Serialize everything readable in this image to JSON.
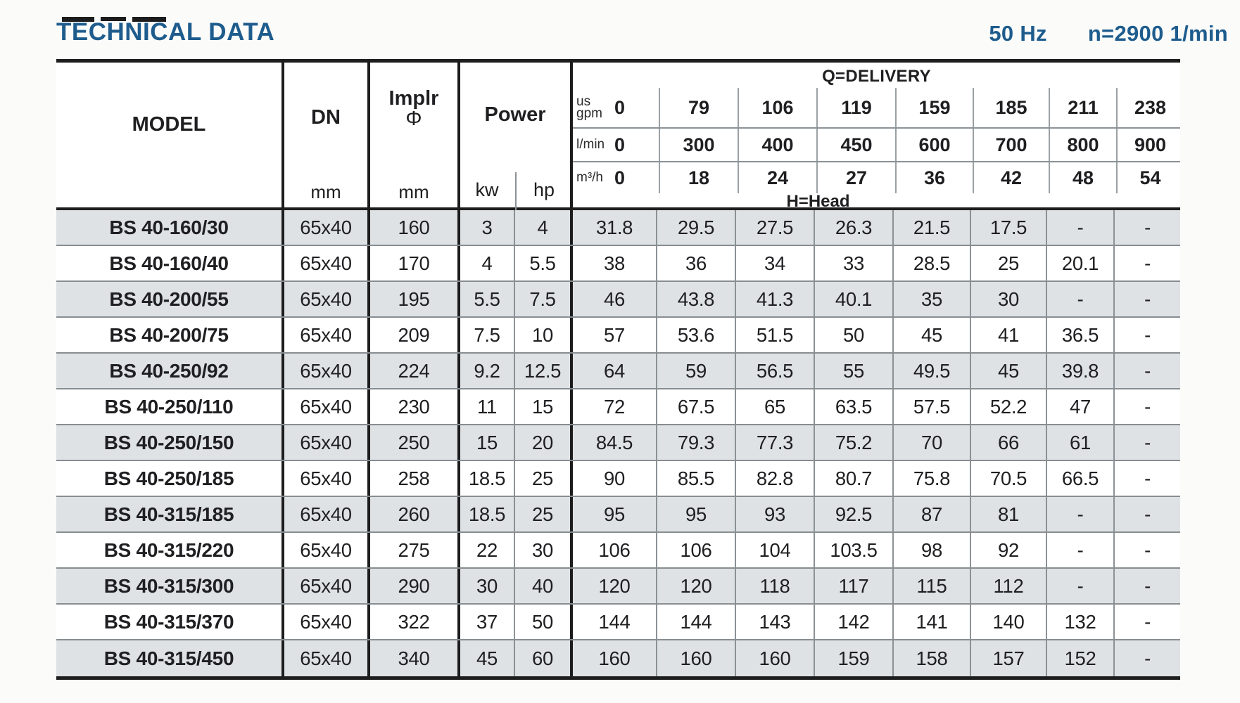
{
  "header": {
    "title": "TECHNICAL DATA",
    "frequency": "50 Hz",
    "speed": "n=2900 1/min"
  },
  "table": {
    "columns": {
      "model_label": "MODEL",
      "dn_label": "DN",
      "dn_unit": "mm",
      "impeller_label": "Implr",
      "impeller_symbol": "Φ",
      "impeller_unit": "mm",
      "power_label": "Power",
      "kw_label": "kw",
      "hp_label": "hp",
      "delivery_label": "Q=DELIVERY",
      "head_label": "H=Head"
    },
    "flow_rows": [
      {
        "unit_top": "us",
        "unit": "gpm",
        "values": [
          "0",
          "79",
          "106",
          "119",
          "159",
          "185",
          "211",
          "238"
        ]
      },
      {
        "unit_top": "",
        "unit": "l/min",
        "values": [
          "0",
          "300",
          "400",
          "450",
          "600",
          "700",
          "800",
          "900"
        ]
      },
      {
        "unit_top": "",
        "unit": "m³/h",
        "values": [
          "0",
          "18",
          "24",
          "27",
          "36",
          "42",
          "48",
          "54"
        ]
      }
    ],
    "rows": [
      {
        "model": "BS 40-160/30",
        "dn": "65x40",
        "impeller": "160",
        "kw": "3",
        "hp": "4",
        "head": [
          "31.8",
          "29.5",
          "27.5",
          "26.3",
          "21.5",
          "17.5",
          "-",
          "-"
        ]
      },
      {
        "model": "BS 40-160/40",
        "dn": "65x40",
        "impeller": "170",
        "kw": "4",
        "hp": "5.5",
        "head": [
          "38",
          "36",
          "34",
          "33",
          "28.5",
          "25",
          "20.1",
          "-"
        ]
      },
      {
        "model": "BS 40-200/55",
        "dn": "65x40",
        "impeller": "195",
        "kw": "5.5",
        "hp": "7.5",
        "head": [
          "46",
          "43.8",
          "41.3",
          "40.1",
          "35",
          "30",
          "-",
          "-"
        ]
      },
      {
        "model": "BS 40-200/75",
        "dn": "65x40",
        "impeller": "209",
        "kw": "7.5",
        "hp": "10",
        "head": [
          "57",
          "53.6",
          "51.5",
          "50",
          "45",
          "41",
          "36.5",
          "-"
        ]
      },
      {
        "model": "BS 40-250/92",
        "dn": "65x40",
        "impeller": "224",
        "kw": "9.2",
        "hp": "12.5",
        "head": [
          "64",
          "59",
          "56.5",
          "55",
          "49.5",
          "45",
          "39.8",
          "-"
        ]
      },
      {
        "model": "BS 40-250/110",
        "dn": "65x40",
        "impeller": "230",
        "kw": "11",
        "hp": "15",
        "head": [
          "72",
          "67.5",
          "65",
          "63.5",
          "57.5",
          "52.2",
          "47",
          "-"
        ]
      },
      {
        "model": "BS 40-250/150",
        "dn": "65x40",
        "impeller": "250",
        "kw": "15",
        "hp": "20",
        "head": [
          "84.5",
          "79.3",
          "77.3",
          "75.2",
          "70",
          "66",
          "61",
          "-"
        ]
      },
      {
        "model": "BS 40-250/185",
        "dn": "65x40",
        "impeller": "258",
        "kw": "18.5",
        "hp": "25",
        "head": [
          "90",
          "85.5",
          "82.8",
          "80.7",
          "75.8",
          "70.5",
          "66.5",
          "-"
        ]
      },
      {
        "model": "BS 40-315/185",
        "dn": "65x40",
        "impeller": "260",
        "kw": "18.5",
        "hp": "25",
        "head": [
          "95",
          "95",
          "93",
          "92.5",
          "87",
          "81",
          "-",
          "-"
        ]
      },
      {
        "model": "BS 40-315/220",
        "dn": "65x40",
        "impeller": "275",
        "kw": "22",
        "hp": "30",
        "head": [
          "106",
          "106",
          "104",
          "103.5",
          "98",
          "92",
          "-",
          "-"
        ]
      },
      {
        "model": "BS 40-315/300",
        "dn": "65x40",
        "impeller": "290",
        "kw": "30",
        "hp": "40",
        "head": [
          "120",
          "120",
          "118",
          "117",
          "115",
          "112",
          "-",
          "-"
        ]
      },
      {
        "model": "BS 40-315/370",
        "dn": "65x40",
        "impeller": "322",
        "kw": "37",
        "hp": "50",
        "head": [
          "144",
          "144",
          "143",
          "142",
          "141",
          "140",
          "132",
          "-"
        ]
      },
      {
        "model": "BS 40-315/450",
        "dn": "65x40",
        "impeller": "340",
        "kw": "45",
        "hp": "60",
        "head": [
          "160",
          "160",
          "160",
          "159",
          "158",
          "157",
          "152",
          "-"
        ]
      }
    ]
  },
  "colors": {
    "title_blue": "#1e5c8d",
    "stripe_gray": "#dee2e5",
    "thin_line": "#8b9296",
    "thick_line": "#1d1d1d",
    "text": "#1f1f22"
  }
}
